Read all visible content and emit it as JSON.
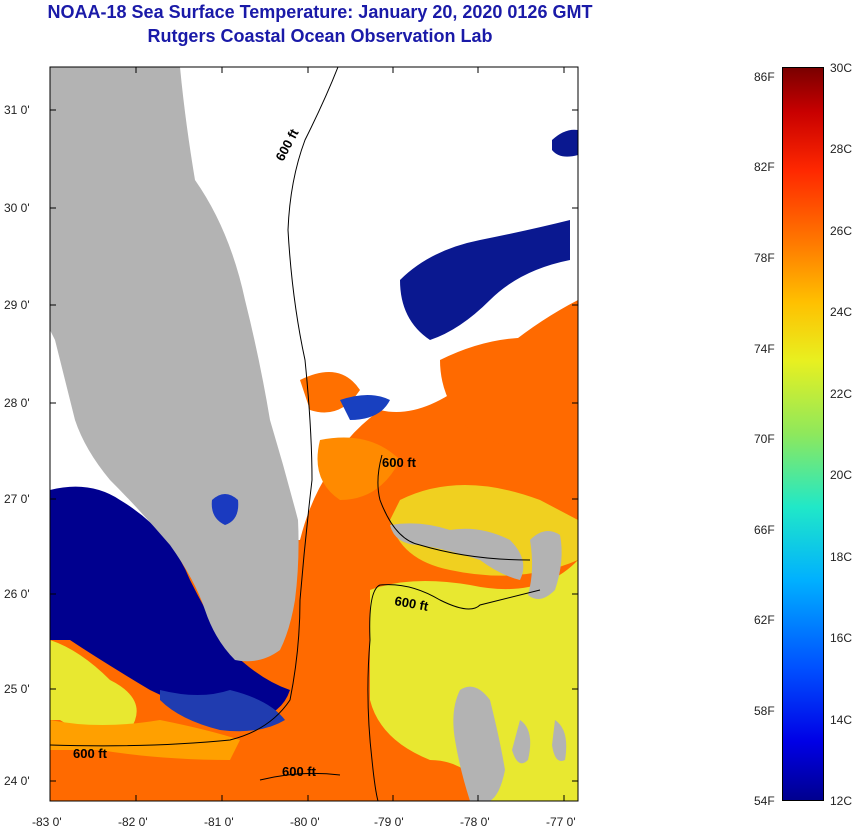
{
  "header": {
    "title": "NOAA-18 Sea Surface Temperature:  January 20, 2020 0126 GMT",
    "subtitle": "Rutgers Coastal Ocean Observation Lab"
  },
  "map": {
    "y_axis_labels": [
      "31 0'",
      "30 0'",
      "29 0'",
      "28 0'",
      "27 0'",
      "26 0'",
      "25 0'",
      "24 0'"
    ],
    "x_axis_labels": [
      "-83 0'",
      "-82 0'",
      "-81 0'",
      "-80 0'",
      "-79 0'",
      "-78 0'",
      "-77 0'"
    ],
    "contour_labels": [
      "600 ft",
      "600 ft",
      "600 ft",
      "600 ft",
      "600 ft"
    ],
    "colors": {
      "land": "#b3b3b3",
      "cloud": "#ffffff",
      "cold": "#00008f",
      "warm": "#ff6a00"
    }
  },
  "colorbar": {
    "fahrenheit_labels": [
      "86F",
      "82F",
      "78F",
      "74F",
      "70F",
      "66F",
      "62F",
      "58F",
      "54F"
    ],
    "celsius_labels": [
      "30C",
      "28C",
      "26C",
      "24C",
      "22C",
      "20C",
      "18C",
      "16C",
      "14C",
      "12C"
    ]
  }
}
